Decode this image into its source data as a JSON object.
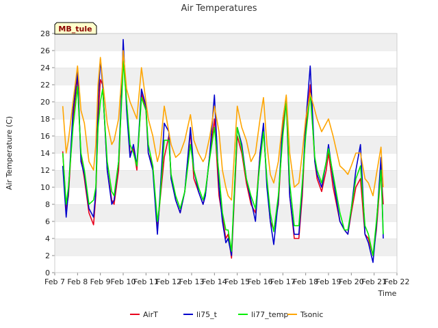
{
  "chart_data": {
    "type": "line",
    "title": "Air Temperatures",
    "xlabel": "Time",
    "ylabel": "Air Temperature (C)",
    "badge": "MB_tule",
    "ylim": [
      0,
      28
    ],
    "yticks": [
      0,
      2,
      4,
      6,
      8,
      10,
      12,
      14,
      16,
      18,
      20,
      22,
      24,
      26,
      28
    ],
    "xlim": [
      7,
      22
    ],
    "xticks": [
      {
        "value": 7,
        "label": "Feb 7"
      },
      {
        "value": 8,
        "label": "Feb 8"
      },
      {
        "value": 9,
        "label": "Feb 9"
      },
      {
        "value": 10,
        "label": "Feb 10"
      },
      {
        "value": 11,
        "label": "Feb 11"
      },
      {
        "value": 12,
        "label": "Feb 12"
      },
      {
        "value": 13,
        "label": "Feb 13"
      },
      {
        "value": 14,
        "label": "Feb 14"
      },
      {
        "value": 15,
        "label": "Feb 15"
      },
      {
        "value": 16,
        "label": "Feb 16"
      },
      {
        "value": 17,
        "label": "Feb 17"
      },
      {
        "value": 18,
        "label": "Feb 18"
      },
      {
        "value": 19,
        "label": "Feb 19"
      },
      {
        "value": 20,
        "label": "Feb 20"
      },
      {
        "value": 21,
        "label": "Feb 21"
      },
      {
        "value": 22,
        "label": "Feb 22"
      }
    ],
    "grid": "horizontal bands",
    "legend_position": "bottom",
    "series": [
      {
        "name": "AirT",
        "color": "#e8001c",
        "x": [
          7.35,
          7.5,
          7.6,
          7.8,
          8.0,
          8.15,
          8.3,
          8.5,
          8.7,
          8.8,
          8.9,
          9.0,
          9.1,
          9.3,
          9.5,
          9.6,
          9.8,
          9.95,
          10.0,
          10.15,
          10.3,
          10.45,
          10.6,
          10.8,
          11.0,
          11.1,
          11.3,
          11.5,
          11.6,
          11.8,
          12.0,
          12.1,
          12.3,
          12.5,
          12.7,
          12.95,
          13.1,
          13.3,
          13.5,
          13.6,
          13.8,
          14.0,
          14.2,
          14.35,
          14.5,
          14.6,
          14.75,
          15.0,
          15.2,
          15.4,
          15.6,
          15.8,
          16.0,
          16.15,
          16.3,
          16.45,
          16.6,
          16.8,
          17.0,
          17.15,
          17.3,
          17.5,
          17.7,
          17.85,
          18.0,
          18.2,
          18.4,
          18.5,
          18.7,
          18.9,
          19.0,
          19.2,
          19.5,
          19.7,
          19.85,
          20.0,
          20.2,
          20.4,
          20.6,
          20.75,
          20.95,
          21.1,
          21.3,
          21.4
        ],
        "values": [
          14.2,
          7.3,
          9.0,
          18.0,
          23.0,
          13.5,
          11.0,
          7.0,
          5.6,
          9.0,
          18.0,
          22.6,
          22.0,
          12.0,
          8.5,
          8.0,
          12.0,
          22.0,
          26.5,
          20.0,
          14.0,
          14.5,
          12.0,
          21.0,
          19.0,
          14.0,
          12.5,
          5.0,
          8.0,
          13.5,
          16.0,
          11.0,
          8.5,
          7.0,
          9.5,
          16.5,
          11.0,
          9.5,
          8.0,
          9.0,
          14.0,
          18.0,
          9.0,
          6.5,
          4.0,
          4.5,
          1.7,
          16.0,
          14.0,
          10.5,
          8.0,
          7.0,
          14.0,
          17.0,
          10.5,
          6.0,
          5.0,
          8.0,
          17.0,
          20.0,
          9.0,
          4.0,
          4.0,
          9.0,
          17.0,
          22.0,
          13.0,
          11.0,
          9.5,
          12.0,
          14.0,
          10.0,
          6.0,
          5.0,
          4.5,
          7.0,
          10.0,
          11.0,
          4.5,
          4.0,
          2.0,
          5.0,
          12.0,
          8.0
        ]
      },
      {
        "name": "li75_t",
        "color": "#0000cc",
        "x": [
          7.35,
          7.5,
          7.6,
          7.8,
          8.0,
          8.15,
          8.3,
          8.5,
          8.7,
          8.8,
          8.9,
          9.0,
          9.1,
          9.3,
          9.5,
          9.6,
          9.8,
          9.95,
          10.0,
          10.15,
          10.3,
          10.45,
          10.6,
          10.8,
          11.0,
          11.1,
          11.3,
          11.5,
          11.6,
          11.8,
          12.0,
          12.1,
          12.3,
          12.5,
          12.7,
          12.95,
          13.1,
          13.3,
          13.5,
          13.6,
          13.8,
          14.0,
          14.2,
          14.35,
          14.5,
          14.6,
          14.75,
          15.0,
          15.2,
          15.4,
          15.6,
          15.8,
          16.0,
          16.15,
          16.3,
          16.45,
          16.6,
          16.8,
          17.0,
          17.15,
          17.3,
          17.5,
          17.7,
          17.85,
          18.0,
          18.2,
          18.4,
          18.5,
          18.7,
          18.9,
          19.0,
          19.2,
          19.5,
          19.7,
          19.85,
          20.0,
          20.2,
          20.4,
          20.6,
          20.75,
          20.95,
          21.1,
          21.3,
          21.4
        ],
        "values": [
          12.5,
          6.5,
          9.5,
          19.0,
          23.5,
          13.0,
          11.5,
          7.5,
          6.5,
          9.5,
          20.0,
          25.0,
          22.0,
          12.0,
          8.0,
          8.5,
          13.0,
          22.5,
          27.3,
          19.0,
          13.5,
          15.0,
          12.5,
          21.5,
          19.5,
          14.0,
          12.0,
          4.5,
          8.5,
          17.5,
          16.5,
          11.0,
          8.5,
          7.0,
          9.5,
          17.0,
          12.0,
          9.5,
          8.0,
          9.0,
          14.0,
          20.8,
          10.0,
          6.0,
          3.5,
          4.0,
          2.0,
          17.0,
          15.0,
          11.0,
          8.5,
          6.0,
          14.0,
          17.5,
          10.0,
          6.0,
          3.3,
          8.5,
          18.0,
          20.5,
          9.0,
          4.5,
          4.5,
          10.0,
          17.5,
          24.2,
          13.0,
          11.5,
          10.0,
          13.0,
          15.0,
          11.0,
          6.0,
          5.0,
          4.5,
          7.5,
          12.0,
          15.0,
          4.5,
          3.5,
          1.2,
          5.5,
          13.5,
          4.0
        ]
      },
      {
        "name": "li77_temp",
        "color": "#00ee00",
        "x": [
          7.35,
          7.5,
          7.6,
          7.8,
          8.0,
          8.15,
          8.3,
          8.5,
          8.7,
          8.8,
          8.9,
          9.0,
          9.1,
          9.3,
          9.5,
          9.6,
          9.8,
          9.95,
          10.0,
          10.15,
          10.3,
          10.45,
          10.6,
          10.8,
          11.0,
          11.1,
          11.3,
          11.5,
          11.6,
          11.8,
          12.0,
          12.1,
          12.3,
          12.5,
          12.7,
          12.95,
          13.1,
          13.3,
          13.5,
          13.6,
          13.8,
          14.0,
          14.2,
          14.35,
          14.5,
          14.6,
          14.75,
          15.0,
          15.2,
          15.4,
          15.6,
          15.8,
          16.0,
          16.15,
          16.3,
          16.45,
          16.6,
          16.8,
          17.0,
          17.15,
          17.3,
          17.5,
          17.7,
          17.85,
          18.0,
          18.2,
          18.4,
          18.5,
          18.7,
          18.9,
          19.0,
          19.2,
          19.5,
          19.7,
          19.85,
          20.0,
          20.2,
          20.4,
          20.6,
          20.75,
          20.95,
          21.1,
          21.3,
          21.4
        ],
        "values": [
          14.0,
          8.0,
          10.0,
          17.0,
          21.8,
          14.0,
          12.0,
          8.0,
          8.5,
          10.0,
          17.0,
          20.0,
          21.5,
          13.0,
          9.5,
          9.0,
          13.0,
          21.0,
          24.8,
          20.0,
          15.0,
          14.0,
          12.5,
          20.5,
          19.0,
          15.0,
          12.5,
          6.0,
          8.0,
          15.5,
          15.5,
          11.5,
          9.0,
          7.5,
          9.5,
          15.0,
          12.0,
          10.0,
          8.5,
          9.5,
          13.5,
          17.0,
          11.5,
          7.0,
          5.0,
          5.0,
          2.5,
          17.0,
          14.5,
          11.0,
          9.0,
          7.5,
          13.0,
          16.5,
          11.0,
          7.0,
          4.8,
          9.0,
          16.0,
          20.0,
          10.5,
          5.5,
          5.5,
          10.5,
          16.0,
          21.0,
          13.5,
          12.0,
          10.5,
          13.0,
          14.5,
          11.5,
          7.0,
          5.0,
          5.0,
          7.5,
          11.0,
          12.5,
          5.5,
          4.5,
          2.0,
          6.0,
          12.0,
          4.5
        ]
      },
      {
        "name": "Tsonic",
        "color": "#ffa500",
        "x": [
          7.35,
          7.5,
          7.6,
          7.8,
          8.0,
          8.15,
          8.3,
          8.5,
          8.7,
          8.8,
          8.9,
          9.0,
          9.1,
          9.3,
          9.5,
          9.6,
          9.8,
          9.95,
          10.0,
          10.15,
          10.3,
          10.45,
          10.6,
          10.8,
          11.0,
          11.1,
          11.3,
          11.5,
          11.6,
          11.8,
          12.0,
          12.1,
          12.3,
          12.5,
          12.7,
          12.95,
          13.1,
          13.3,
          13.5,
          13.6,
          13.8,
          14.0,
          14.2,
          14.35,
          14.5,
          14.6,
          14.75,
          15.0,
          15.2,
          15.4,
          15.6,
          15.8,
          16.0,
          16.15,
          16.3,
          16.45,
          16.6,
          16.8,
          17.0,
          17.15,
          17.3,
          17.5,
          17.7,
          17.85,
          18.0,
          18.2,
          18.4,
          18.5,
          18.7,
          18.9,
          19.0,
          19.2,
          19.5,
          19.7,
          19.85,
          20.0,
          20.2,
          20.4,
          20.6,
          20.75,
          20.95,
          21.1,
          21.3,
          21.4
        ],
        "values": [
          19.5,
          14.0,
          15.5,
          20.0,
          24.2,
          19.0,
          17.5,
          13.0,
          12.0,
          15.0,
          22.0,
          25.2,
          22.5,
          17.5,
          15.0,
          15.5,
          18.0,
          23.5,
          26.0,
          21.5,
          20.0,
          19.0,
          18.0,
          24.0,
          20.0,
          18.0,
          16.0,
          13.0,
          14.0,
          19.5,
          16.5,
          15.0,
          13.5,
          14.0,
          15.5,
          18.5,
          15.5,
          14.0,
          13.0,
          13.5,
          16.0,
          19.5,
          16.5,
          12.0,
          10.0,
          9.0,
          8.5,
          19.5,
          17.0,
          15.5,
          13.0,
          14.0,
          18.0,
          20.5,
          15.0,
          11.5,
          10.5,
          13.0,
          18.0,
          20.8,
          14.0,
          10.0,
          10.5,
          14.0,
          18.0,
          21.0,
          19.0,
          18.0,
          16.5,
          17.5,
          18.0,
          16.0,
          12.5,
          12.0,
          11.5,
          12.5,
          14.0,
          14.0,
          11.0,
          10.5,
          9.0,
          11.5,
          14.7,
          10.0
        ]
      }
    ]
  }
}
